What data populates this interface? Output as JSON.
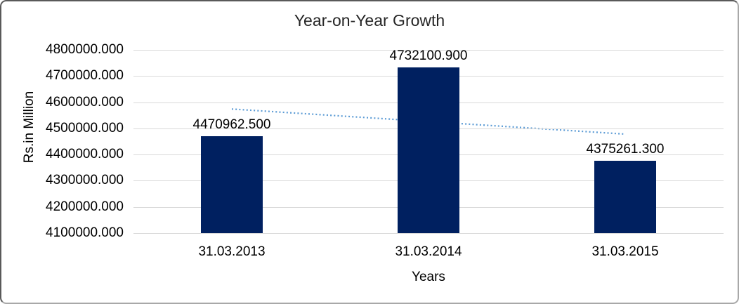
{
  "chart_data": {
    "type": "bar",
    "title": "Year-on-Year Growth",
    "categories": [
      "31.03.2013",
      "31.03.2014",
      "31.03.2015"
    ],
    "values": [
      4470962.5,
      4732100.9,
      4375261.3
    ],
    "value_labels": [
      "4470962.500",
      "4732100.900",
      "4375261.300"
    ],
    "xlabel": "Years",
    "ylabel": "Rs.in Million",
    "ylim": [
      4100000,
      4800000
    ],
    "ytick_step": 100000,
    "ytick_labels": [
      "4800000.000",
      "4700000.000",
      "4600000.000",
      "4500000.000",
      "4400000.000",
      "4300000.000",
      "4200000.000",
      "4100000.000"
    ],
    "grid": true,
    "legend": "none",
    "bar_color": "#002060",
    "trendline": {
      "type": "linear",
      "style": "dotted",
      "color": "#5b9bd5",
      "start_value": 4573959,
      "end_value": 4478258
    }
  },
  "colors": {
    "background": "#ffffff",
    "gridline": "#d9d9d9",
    "text": "#000000",
    "title_text": "#262626",
    "border_top_left": "#595959",
    "border_bottom_right": "#a8a8a8"
  }
}
